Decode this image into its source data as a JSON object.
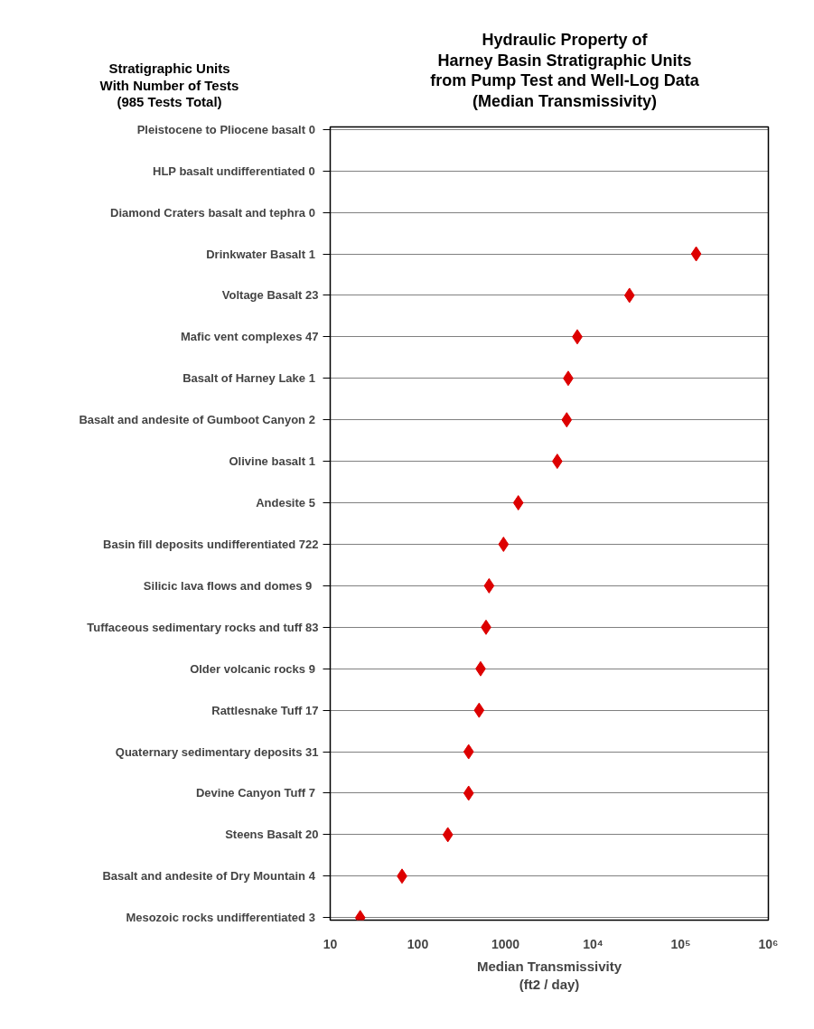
{
  "chart_data": {
    "type": "scatter",
    "title": "Hydraulic Property of\nHarney Basin Stratigraphic Units\nfrom Pump Test and Well-Log Data\n(Median Transmissivity)",
    "ylabel": "Stratigraphic Units\nWith Number of Tests\n(985 Tests Total)",
    "xlabel": "Median Transmissivity\n(ft2 / day)",
    "orientation": "horizontal",
    "categories": [
      "Pleistocene to Pliocene basalt  0",
      "HLP basalt undifferentiated  0",
      "Diamond Craters basalt and tephra  0",
      "Drinkwater Basalt  1",
      "Voltage Basalt 23",
      "Mafic vent complexes 47",
      "Basalt of Harney Lake  1",
      "Basalt and andesite of Gumboot Canyon  2",
      "Olivine basalt  1",
      "Andesite  5",
      "Basin fill deposits undifferentiated 722",
      "Silicic lava flows and domes   9",
      "Tuffaceous sedimentary rocks and tuff 83",
      "Older volcanic rocks  9",
      "Rattlesnake Tuff 17",
      "Quaternary sedimentary deposits 31",
      "Devine Canyon Tuff  7",
      "Steens Basalt 20",
      "Basalt and andesite of Dry Mountain  4",
      "Mesozoic rocks undifferentiated  3"
    ],
    "series": [
      {
        "color": "#dd0000",
        "values": [
          null,
          null,
          null,
          150000,
          26000,
          6600,
          5200,
          5000,
          3900,
          1400,
          950,
          650,
          600,
          520,
          500,
          380,
          380,
          220,
          66,
          22
        ]
      }
    ],
    "log": "x",
    "xlim": [
      10,
      1000000
    ],
    "xticks": [
      10,
      100,
      1000,
      {
        "value": 10000,
        "label": "10⁴"
      },
      {
        "value": 100000,
        "label": "10⁵"
      },
      {
        "value": 1000000,
        "label": "10⁶"
      }
    ],
    "grid": "y",
    "line_style": "dotted",
    "marker": "diamond"
  }
}
